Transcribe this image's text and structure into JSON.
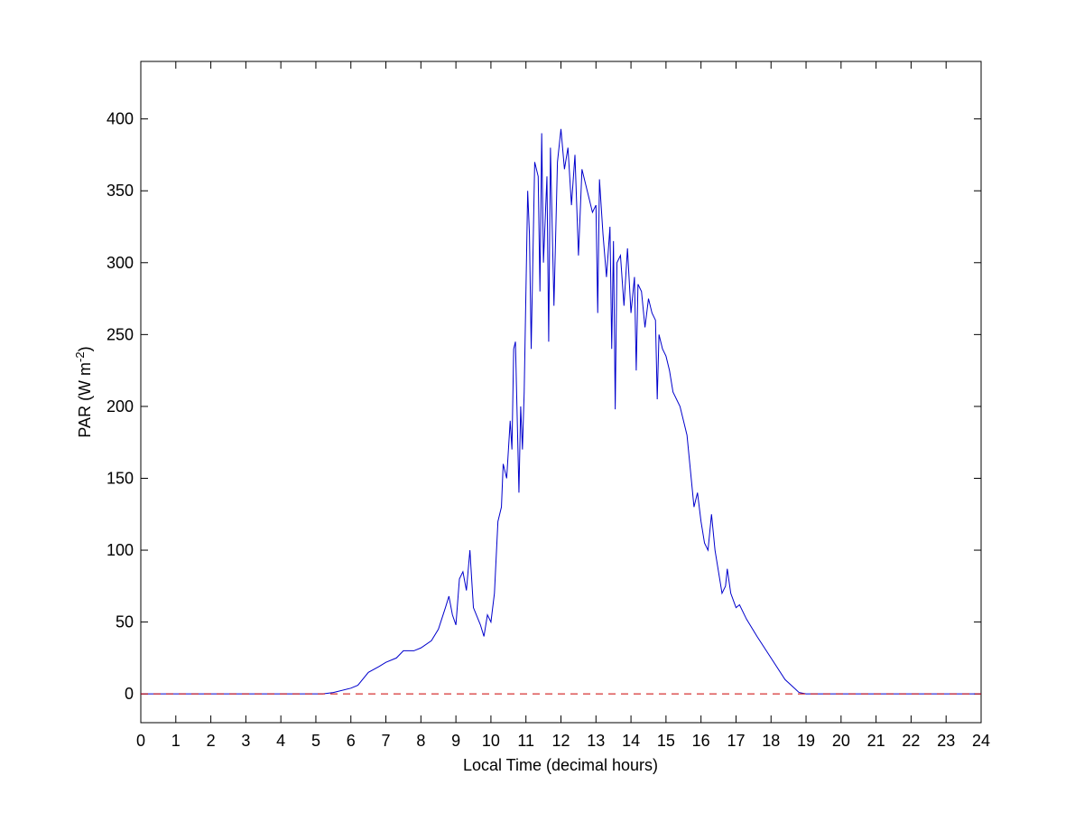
{
  "chart_data": {
    "type": "line",
    "xlabel": "Local Time (decimal hours)",
    "ylabel": [
      "PAR (W m",
      "-2",
      ")"
    ],
    "xlim": [
      0,
      24
    ],
    "xticks": [
      0,
      1,
      2,
      3,
      4,
      5,
      6,
      7,
      8,
      9,
      10,
      11,
      12,
      13,
      14,
      15,
      16,
      17,
      18,
      19,
      20,
      21,
      22,
      23,
      24
    ],
    "ylim": [
      -20,
      440
    ],
    "yticks": [
      0,
      50,
      100,
      150,
      200,
      250,
      300,
      350,
      400
    ],
    "series": [
      {
        "color": "#0000cc",
        "dash": false,
        "x": [
          0,
          5.2,
          5.5,
          6,
          6.2,
          6.5,
          6.8,
          7,
          7.3,
          7.5,
          7.8,
          8,
          8.3,
          8.5,
          8.7,
          8.8,
          8.9,
          9,
          9.1,
          9.2,
          9.3,
          9.4,
          9.5,
          9.7,
          9.8,
          9.9,
          10,
          10.1,
          10.2,
          10.3,
          10.35,
          10.45,
          10.55,
          10.6,
          10.65,
          10.7,
          10.8,
          10.85,
          10.9,
          10.95,
          11.05,
          11.1,
          11.15,
          11.25,
          11.35,
          11.4,
          11.45,
          11.5,
          11.6,
          11.65,
          11.7,
          11.8,
          11.9,
          12,
          12.1,
          12.2,
          12.3,
          12.4,
          12.5,
          12.6,
          12.7,
          12.8,
          12.9,
          13,
          13.05,
          13.1,
          13.2,
          13.3,
          13.4,
          13.45,
          13.5,
          13.55,
          13.6,
          13.7,
          13.8,
          13.9,
          14,
          14.1,
          14.15,
          14.2,
          14.3,
          14.4,
          14.5,
          14.6,
          14.7,
          14.75,
          14.8,
          14.9,
          15,
          15.1,
          15.2,
          15.4,
          15.6,
          15.8,
          15.9,
          16,
          16.1,
          16.2,
          16.3,
          16.4,
          16.5,
          16.6,
          16.7,
          16.75,
          16.85,
          17,
          17.1,
          17.3,
          17.6,
          18,
          18.4,
          18.8,
          19,
          24
        ],
        "values": [
          0,
          0,
          1,
          4,
          6,
          15,
          19,
          22,
          25,
          30,
          30,
          32,
          37,
          45,
          60,
          68,
          55,
          48,
          80,
          85,
          72,
          100,
          60,
          48,
          40,
          55,
          50,
          70,
          120,
          130,
          160,
          150,
          190,
          170,
          240,
          245,
          140,
          200,
          170,
          210,
          350,
          320,
          240,
          370,
          360,
          280,
          390,
          300,
          360,
          245,
          380,
          270,
          370,
          393,
          365,
          380,
          340,
          375,
          305,
          365,
          355,
          345,
          335,
          340,
          265,
          358,
          320,
          290,
          325,
          240,
          315,
          198,
          300,
          305,
          270,
          310,
          265,
          290,
          225,
          285,
          280,
          255,
          275,
          265,
          260,
          205,
          250,
          240,
          235,
          225,
          210,
          200,
          180,
          130,
          140,
          120,
          105,
          100,
          125,
          100,
          85,
          70,
          75,
          87,
          70,
          60,
          62,
          52,
          40,
          25,
          10,
          1,
          0,
          0
        ]
      },
      {
        "color": "#cc0000",
        "dash": true,
        "x": [
          0,
          24
        ],
        "values": [
          0,
          0
        ]
      }
    ]
  }
}
